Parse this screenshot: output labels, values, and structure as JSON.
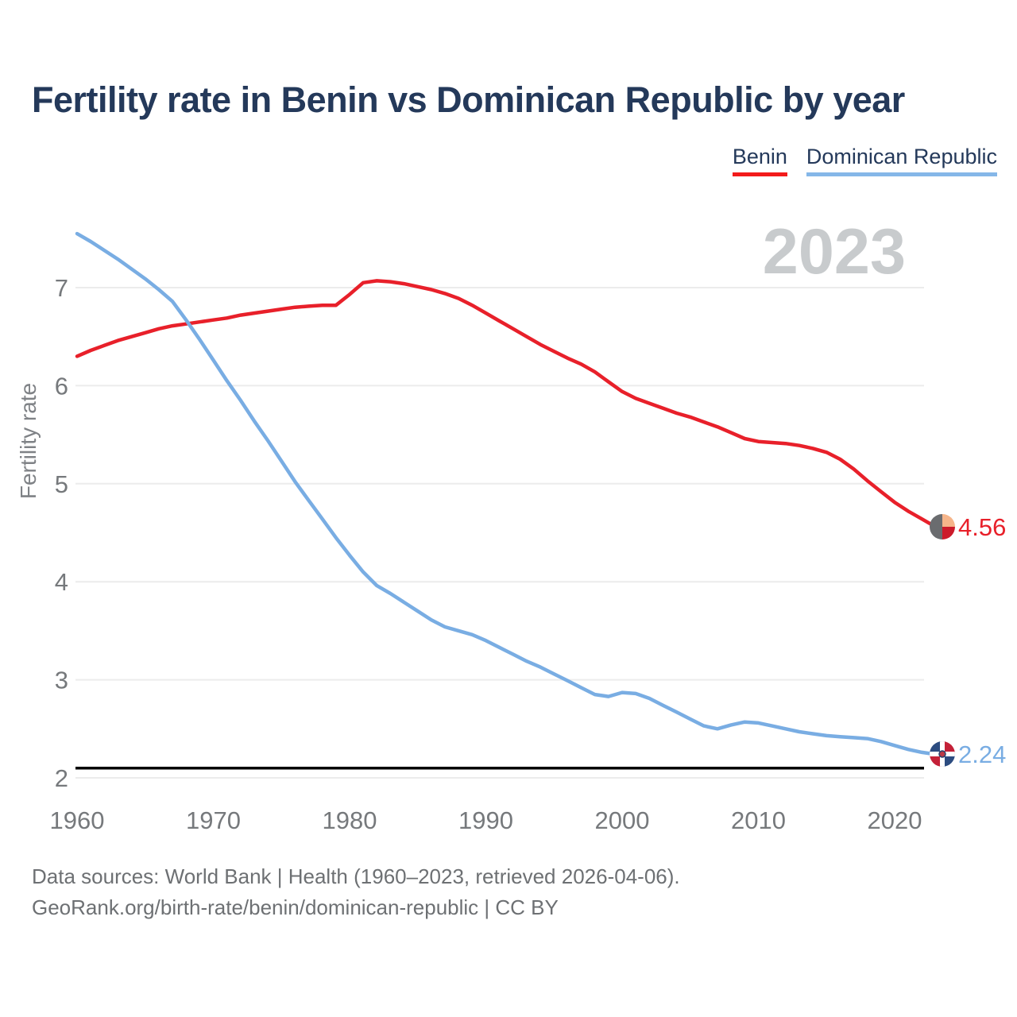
{
  "title": "Fertility rate in Benin vs Dominican Republic by year",
  "legend": {
    "benin": {
      "label": "Benin",
      "underline_color": "#f31b1b"
    },
    "dominican_republic": {
      "label": "Dominican Republic",
      "underline_color": "#85b7e8"
    }
  },
  "watermark": "2023",
  "footer": {
    "line1": "Data sources: World Bank | Health (1960–2023, retrieved 2026-04-06).",
    "line2": "GeoRank.org/birth-rate/benin/dominican-republic | CC BY"
  },
  "colors": {
    "title_text": "#24395a",
    "axis_text": "#76797c",
    "watermark_text": "#c8cbcd",
    "gridline": "#ececec",
    "footer_text": "#6d7073",
    "reference_line": "#000000"
  },
  "chart_data": {
    "type": "line",
    "title": "Fertility rate in Benin vs Dominican Republic by year",
    "xlabel": "",
    "ylabel": "Fertility rate",
    "current_year": "2023",
    "x_start": 1960,
    "x_end": 2023,
    "x_ticks": [
      1960,
      1970,
      1980,
      1990,
      2000,
      2010,
      2020
    ],
    "y_ticks": [
      7,
      6,
      5,
      4,
      3,
      2
    ],
    "ylim": [
      1.9,
      7.7
    ],
    "grid": true,
    "legend_position": "top-right",
    "reference_line": {
      "value": 2.1
    },
    "series": [
      {
        "name": "Benin",
        "color": "#e8202a",
        "end_label": "4.56",
        "values": [
          6.3,
          6.36,
          6.41,
          6.46,
          6.5,
          6.54,
          6.58,
          6.61,
          6.63,
          6.65,
          6.67,
          6.69,
          6.72,
          6.74,
          6.76,
          6.78,
          6.8,
          6.81,
          6.82,
          6.82,
          6.93,
          7.05,
          7.07,
          7.06,
          7.04,
          7.01,
          6.98,
          6.94,
          6.89,
          6.82,
          6.74,
          6.66,
          6.58,
          6.5,
          6.42,
          6.35,
          6.28,
          6.22,
          6.14,
          6.04,
          5.94,
          5.87,
          5.82,
          5.77,
          5.72,
          5.68,
          5.63,
          5.58,
          5.52,
          5.46,
          5.43,
          5.42,
          5.41,
          5.39,
          5.36,
          5.32,
          5.25,
          5.15,
          5.03,
          4.92,
          4.81,
          4.72,
          4.64,
          4.56
        ]
      },
      {
        "name": "Dominican Republic",
        "color": "#79ade3",
        "end_label": "2.24",
        "values": [
          7.55,
          7.47,
          7.38,
          7.29,
          7.19,
          7.09,
          6.98,
          6.86,
          6.67,
          6.47,
          6.26,
          6.05,
          5.85,
          5.64,
          5.44,
          5.23,
          5.02,
          4.83,
          4.64,
          4.45,
          4.27,
          4.1,
          3.96,
          3.88,
          3.79,
          3.7,
          3.61,
          3.54,
          3.5,
          3.46,
          3.4,
          3.33,
          3.26,
          3.19,
          3.13,
          3.06,
          2.99,
          2.92,
          2.85,
          2.83,
          2.87,
          2.86,
          2.81,
          2.74,
          2.67,
          2.6,
          2.53,
          2.5,
          2.54,
          2.57,
          2.56,
          2.53,
          2.5,
          2.47,
          2.45,
          2.43,
          2.42,
          2.41,
          2.4,
          2.37,
          2.33,
          2.29,
          2.26,
          2.24
        ]
      }
    ]
  },
  "icons": {
    "benin_flag": {
      "left": "#6a6c6f",
      "top_right": "#f6b58a",
      "bottom_right": "#cc1b2b"
    },
    "dominican_republic_flag": {
      "blue": "#2c4c80",
      "red": "#c42138",
      "cross": "#ffffff",
      "center": "#bb3a46",
      "center_ring": "#27406b"
    }
  }
}
